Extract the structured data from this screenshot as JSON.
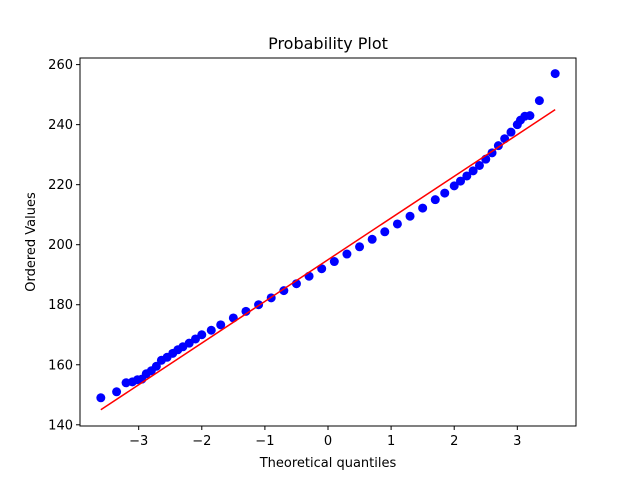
{
  "chart_data": {
    "type": "scatter",
    "title": "Probability Plot",
    "xlabel": "Theoretical quantiles",
    "ylabel": "Ordered Values",
    "xlim": [
      -3.93,
      3.93
    ],
    "ylim": [
      139.6,
      262.2
    ],
    "xticks": [
      -3,
      -2,
      -1,
      0,
      1,
      2,
      3
    ],
    "xtick_labels": [
      "−3",
      "−2",
      "−1",
      "0",
      "1",
      "2",
      "3"
    ],
    "yticks": [
      140,
      160,
      180,
      200,
      220,
      240,
      260
    ],
    "ytick_labels": [
      "140",
      "160",
      "180",
      "200",
      "220",
      "240",
      "260"
    ],
    "grid": false,
    "legend": "none",
    "series": [
      {
        "kind": "points",
        "color": "#0000ff",
        "points": [
          [
            -3.6,
            149.0
          ],
          [
            -3.35,
            151.0
          ],
          [
            -3.2,
            154.0
          ],
          [
            -3.1,
            154.3
          ],
          [
            -3.02,
            155.0
          ],
          [
            -2.95,
            155.2
          ],
          [
            -2.88,
            157.0
          ],
          [
            -2.8,
            158.0
          ],
          [
            -2.72,
            159.5
          ],
          [
            -2.64,
            161.5
          ],
          [
            -2.55,
            162.5
          ],
          [
            -2.46,
            163.8
          ],
          [
            -2.38,
            165.0
          ],
          [
            -2.3,
            166.0
          ],
          [
            -2.2,
            167.2
          ],
          [
            -2.1,
            168.6
          ],
          [
            -2.0,
            170.0
          ],
          [
            -1.85,
            171.5
          ],
          [
            -1.7,
            173.3
          ],
          [
            -1.5,
            175.6
          ],
          [
            -1.3,
            177.8
          ],
          [
            -1.1,
            180.0
          ],
          [
            -0.9,
            182.3
          ],
          [
            -0.7,
            184.7
          ],
          [
            -0.5,
            187.0
          ],
          [
            -0.3,
            189.5
          ],
          [
            -0.1,
            192.0
          ],
          [
            0.1,
            194.4
          ],
          [
            0.3,
            196.9
          ],
          [
            0.5,
            199.3
          ],
          [
            0.7,
            201.8
          ],
          [
            0.9,
            204.3
          ],
          [
            1.1,
            206.9
          ],
          [
            1.3,
            209.5
          ],
          [
            1.5,
            212.2
          ],
          [
            1.7,
            215.0
          ],
          [
            1.85,
            217.2
          ],
          [
            2.0,
            219.6
          ],
          [
            2.1,
            221.2
          ],
          [
            2.2,
            222.9
          ],
          [
            2.3,
            224.6
          ],
          [
            2.4,
            226.4
          ],
          [
            2.5,
            228.5
          ],
          [
            2.6,
            230.6
          ],
          [
            2.7,
            233.0
          ],
          [
            2.8,
            235.3
          ],
          [
            2.9,
            237.5
          ],
          [
            3.0,
            240.0
          ],
          [
            3.05,
            241.5
          ],
          [
            3.12,
            242.8
          ],
          [
            3.2,
            243.0
          ],
          [
            3.35,
            248.0
          ],
          [
            3.6,
            257.0
          ]
        ]
      },
      {
        "kind": "line",
        "color": "#ff0000",
        "points": [
          [
            -3.6,
            145.0
          ],
          [
            3.6,
            245.0
          ]
        ]
      }
    ]
  }
}
